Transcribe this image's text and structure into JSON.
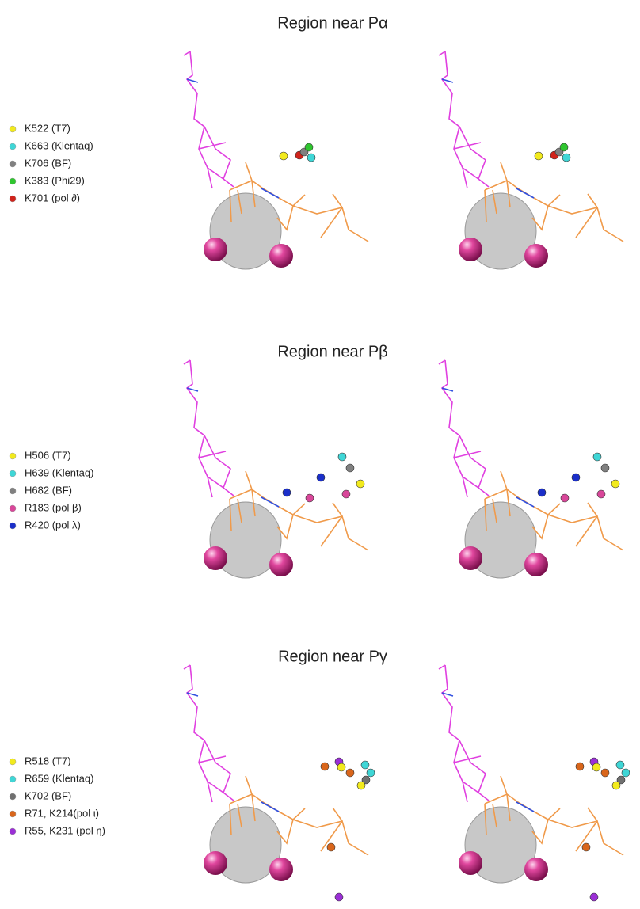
{
  "panels": [
    {
      "title": "Region near Pα",
      "legend": [
        {
          "label": "K522 (T7)",
          "color": "#f2ea1d"
        },
        {
          "label": "K663 (Klentaq)",
          "color": "#3fd6d6"
        },
        {
          "label": "K706 (BF)",
          "color": "#808080"
        },
        {
          "label": "K383 (Phi29)",
          "color": "#2fc62f"
        },
        {
          "label": "K701 (pol ∂)",
          "color": "#d0231b"
        }
      ]
    },
    {
      "title": "Region near Pβ",
      "legend": [
        {
          "label": "H506 (T7)",
          "color": "#f2ea1d"
        },
        {
          "label": "H639 (Klentaq)",
          "color": "#3fd6d6"
        },
        {
          "label": "H682 (BF)",
          "color": "#808080"
        },
        {
          "label": "R183 (pol β)",
          "color": "#d9479a"
        },
        {
          "label": "R420 (pol λ)",
          "color": "#1b2fc9"
        }
      ]
    },
    {
      "title": "Region near Pγ",
      "legend": [
        {
          "label": "R518 (T7)",
          "color": "#f2ea1d"
        },
        {
          "label": "R659 (Klentaq)",
          "color": "#3fd6d6"
        },
        {
          "label": "K702 (BF)",
          "color": "#707070"
        },
        {
          "label": "R71, K214(pol ι)",
          "color": "#d9661b"
        },
        {
          "label": "R55, K231 (pol η)",
          "color": "#9b2fd6"
        }
      ]
    }
  ]
}
